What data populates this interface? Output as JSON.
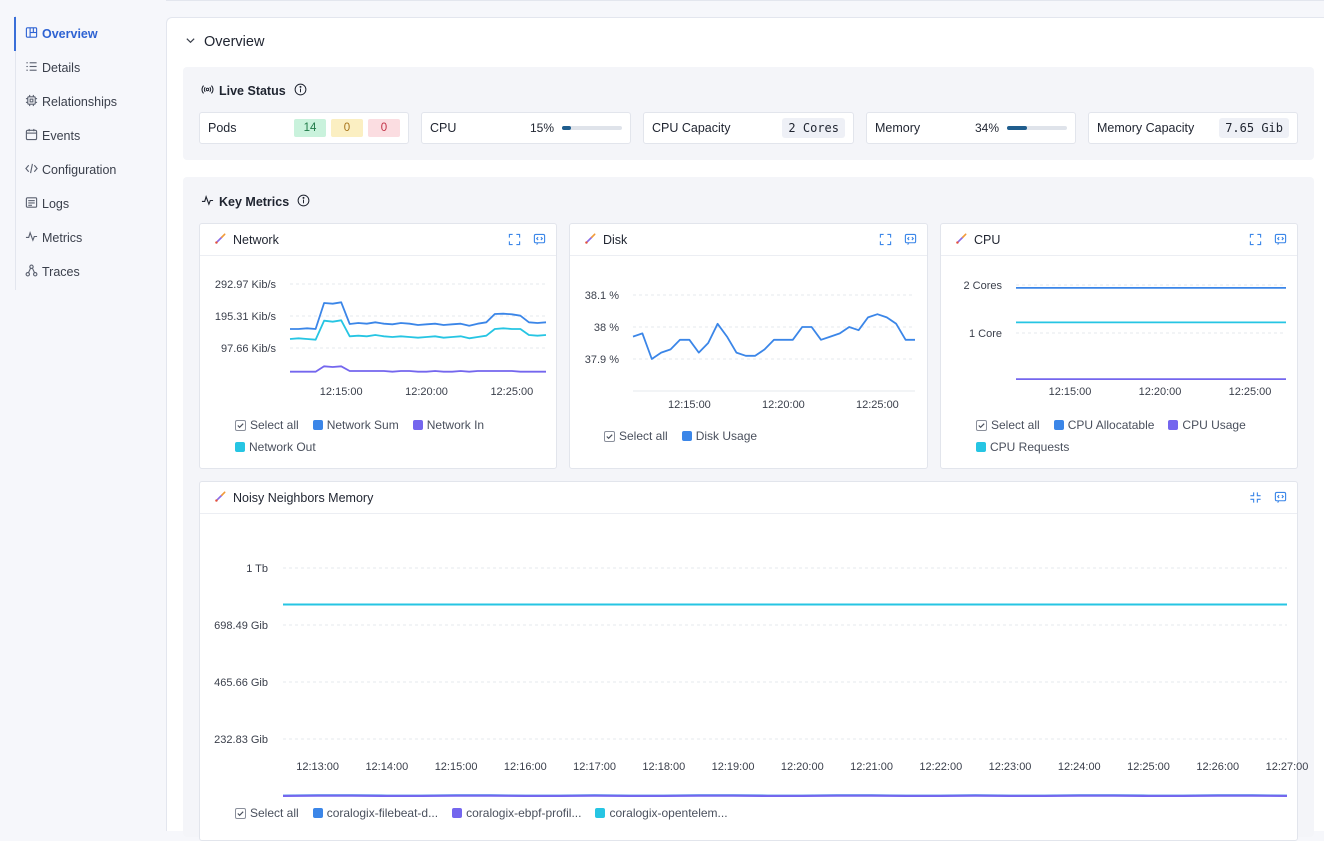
{
  "sidebar": {
    "items": [
      {
        "label": "Overview",
        "icon": "overview-icon",
        "active": true
      },
      {
        "label": "Details",
        "icon": "details-icon"
      },
      {
        "label": "Relationships",
        "icon": "relationships-icon"
      },
      {
        "label": "Events",
        "icon": "events-icon"
      },
      {
        "label": "Configuration",
        "icon": "configuration-icon"
      },
      {
        "label": "Logs",
        "icon": "logs-icon"
      },
      {
        "label": "Metrics",
        "icon": "metrics-icon"
      },
      {
        "label": "Traces",
        "icon": "traces-icon"
      }
    ]
  },
  "overview": {
    "title": "Overview"
  },
  "live_status": {
    "title": "Live Status",
    "pods": {
      "label": "Pods",
      "running": "14",
      "pending": "0",
      "failed": "0"
    },
    "cpu": {
      "label": "CPU",
      "percent_text": "15%",
      "fraction": 0.15
    },
    "cpu_capacity": {
      "label": "CPU Capacity",
      "value": "2 Cores"
    },
    "memory": {
      "label": "Memory",
      "percent_text": "34%",
      "fraction": 0.34
    },
    "memory_capacity": {
      "label": "Memory Capacity",
      "value": "7.65 Gib"
    }
  },
  "key_metrics": {
    "title": "Key Metrics"
  },
  "colors": {
    "blue": "#3b86e8",
    "cyan": "#26c5e3",
    "purple": "#7466ee",
    "accent": "#2e63d3"
  },
  "chart_data": [
    {
      "type": "line",
      "title": "Network",
      "x": [
        "12:12:00",
        "12:12:30",
        "12:13:00",
        "12:13:30",
        "12:14:00",
        "12:14:30",
        "12:15:00",
        "12:15:30",
        "12:16:00",
        "12:16:30",
        "12:17:00",
        "12:17:30",
        "12:18:00",
        "12:18:30",
        "12:19:00",
        "12:19:30",
        "12:20:00",
        "12:20:30",
        "12:21:00",
        "12:21:30",
        "12:22:00",
        "12:22:30",
        "12:23:00",
        "12:23:30",
        "12:24:00",
        "12:24:30",
        "12:25:00",
        "12:25:30",
        "12:26:00",
        "12:26:30",
        "12:27:00"
      ],
      "xticks": [
        "12:15:00",
        "12:20:00",
        "12:25:00"
      ],
      "yticks": [
        "292.97 Kib/s",
        "195.31 Kib/s",
        "97.66 Kib/s"
      ],
      "ylim": [
        0,
        340
      ],
      "series": [
        {
          "name": "Network Sum",
          "color": "#3b86e8",
          "values": [
            150,
            150,
            152,
            150,
            228,
            226,
            230,
            165,
            168,
            166,
            170,
            166,
            164,
            168,
            166,
            162,
            164,
            166,
            162,
            164,
            166,
            160,
            166,
            170,
            195,
            196,
            194,
            190,
            170,
            168,
            170
          ]
        },
        {
          "name": "Network Out",
          "color": "#26c5e3",
          "values": [
            120,
            122,
            120,
            118,
            175,
            172,
            176,
            128,
            130,
            128,
            132,
            128,
            126,
            128,
            126,
            124,
            126,
            128,
            124,
            126,
            128,
            122,
            126,
            130,
            150,
            152,
            150,
            150,
            132,
            130,
            132
          ]
        },
        {
          "name": "Network In",
          "color": "#7466ee",
          "values": [
            22,
            22,
            22,
            22,
            38,
            36,
            38,
            24,
            24,
            24,
            24,
            24,
            22,
            24,
            24,
            22,
            22,
            24,
            22,
            22,
            24,
            22,
            24,
            24,
            24,
            24,
            24,
            22,
            22,
            22,
            22
          ]
        }
      ],
      "legend": {
        "select_all": "Select all"
      }
    },
    {
      "type": "line",
      "title": "Disk",
      "x": [
        "12:12:00",
        "12:12:30",
        "12:13:00",
        "12:13:30",
        "12:14:00",
        "12:14:30",
        "12:15:00",
        "12:15:30",
        "12:16:00",
        "12:16:30",
        "12:17:00",
        "12:17:30",
        "12:18:00",
        "12:18:30",
        "12:19:00",
        "12:19:30",
        "12:20:00",
        "12:20:30",
        "12:21:00",
        "12:21:30",
        "12:22:00",
        "12:22:30",
        "12:23:00",
        "12:23:30",
        "12:24:00",
        "12:24:30",
        "12:25:00",
        "12:25:30",
        "12:26:00",
        "12:26:30",
        "12:27:00"
      ],
      "xticks": [
        "12:15:00",
        "12:20:00",
        "12:25:00"
      ],
      "yticks": [
        "38.1 %",
        "38 %",
        "37.9 %"
      ],
      "ylim": [
        37.8,
        38.13
      ],
      "series": [
        {
          "name": "Disk Usage",
          "color": "#3b86e8",
          "values": [
            37.97,
            37.98,
            37.9,
            37.92,
            37.93,
            37.96,
            37.96,
            37.92,
            37.95,
            38.01,
            37.97,
            37.92,
            37.91,
            37.91,
            37.93,
            37.96,
            37.96,
            37.96,
            38.0,
            38.0,
            37.96,
            37.97,
            37.98,
            38.0,
            37.99,
            38.03,
            38.04,
            38.03,
            38.01,
            37.96,
            37.96
          ]
        }
      ],
      "legend": {
        "select_all": "Select all"
      }
    },
    {
      "type": "line",
      "title": "CPU",
      "x": [
        "12:12:00",
        "12:27:00"
      ],
      "xticks": [
        "12:15:00",
        "12:20:00",
        "12:25:00"
      ],
      "yticks": [
        "2 Cores",
        "1 Core"
      ],
      "ylim": [
        0,
        2.2
      ],
      "series": [
        {
          "name": "CPU Allocatable",
          "color": "#3b86e8",
          "values": [
            1.94,
            1.94
          ]
        },
        {
          "name": "CPU Usage",
          "color": "#7466ee",
          "values": [
            0.04,
            0.04
          ]
        },
        {
          "name": "CPU Requests",
          "color": "#26c5e3",
          "values": [
            1.22,
            1.22
          ]
        }
      ],
      "legend": {
        "select_all": "Select all"
      }
    },
    {
      "type": "line",
      "title": "Noisy Neighbors Memory",
      "x": [
        "12:12:30",
        "12:13:00",
        "12:13:30",
        "12:14:00",
        "12:14:30",
        "12:15:00",
        "12:15:30",
        "12:16:00",
        "12:16:30",
        "12:17:00",
        "12:17:30",
        "12:18:00",
        "12:18:30",
        "12:19:00",
        "12:19:30",
        "12:20:00",
        "12:20:30",
        "12:21:00",
        "12:21:30",
        "12:22:00",
        "12:22:30",
        "12:23:00",
        "12:23:30",
        "12:24:00",
        "12:24:30",
        "12:25:00",
        "12:25:30",
        "12:26:00",
        "12:26:30",
        "12:27:00"
      ],
      "xticks": [
        "12:13:00",
        "12:14:00",
        "12:15:00",
        "12:16:00",
        "12:17:00",
        "12:18:00",
        "12:19:00",
        "12:20:00",
        "12:21:00",
        "12:22:00",
        "12:23:00",
        "12:24:00",
        "12:25:00",
        "12:26:00",
        "12:27:00"
      ],
      "yticks": [
        "1 Tb",
        "698.49 Gib",
        "465.66 Gib",
        "232.83 Gib"
      ],
      "ylim": [
        0,
        1024
      ],
      "series": [
        {
          "name": "coralogix-filebeat-d...",
          "color": "#3b86e8",
          "values": [
            2,
            3,
            3,
            2,
            2,
            3,
            3,
            2,
            2,
            3,
            2,
            2,
            3,
            3,
            2,
            2,
            3,
            3,
            2,
            2,
            3,
            2,
            2,
            3,
            3,
            2,
            2,
            3,
            3,
            2
          ]
        },
        {
          "name": "coralogix-ebpf-profil...",
          "color": "#7466ee",
          "values": [
            0,
            1,
            1,
            0,
            0,
            1,
            1,
            0,
            0,
            1,
            0,
            0,
            1,
            1,
            0,
            0,
            1,
            1,
            0,
            0,
            1,
            0,
            0,
            1,
            1,
            0,
            0,
            1,
            1,
            0
          ]
        },
        {
          "name": "coralogix-opentelem...",
          "color": "#26c5e3",
          "values": [
            860,
            860,
            860,
            860,
            860,
            860,
            860,
            860,
            860,
            860,
            860,
            860,
            860,
            860,
            860,
            860,
            860,
            860,
            860,
            860,
            860,
            860,
            860,
            860,
            860,
            860,
            860,
            860,
            860,
            860
          ]
        }
      ],
      "legend": {
        "select_all": "Select all"
      }
    }
  ]
}
